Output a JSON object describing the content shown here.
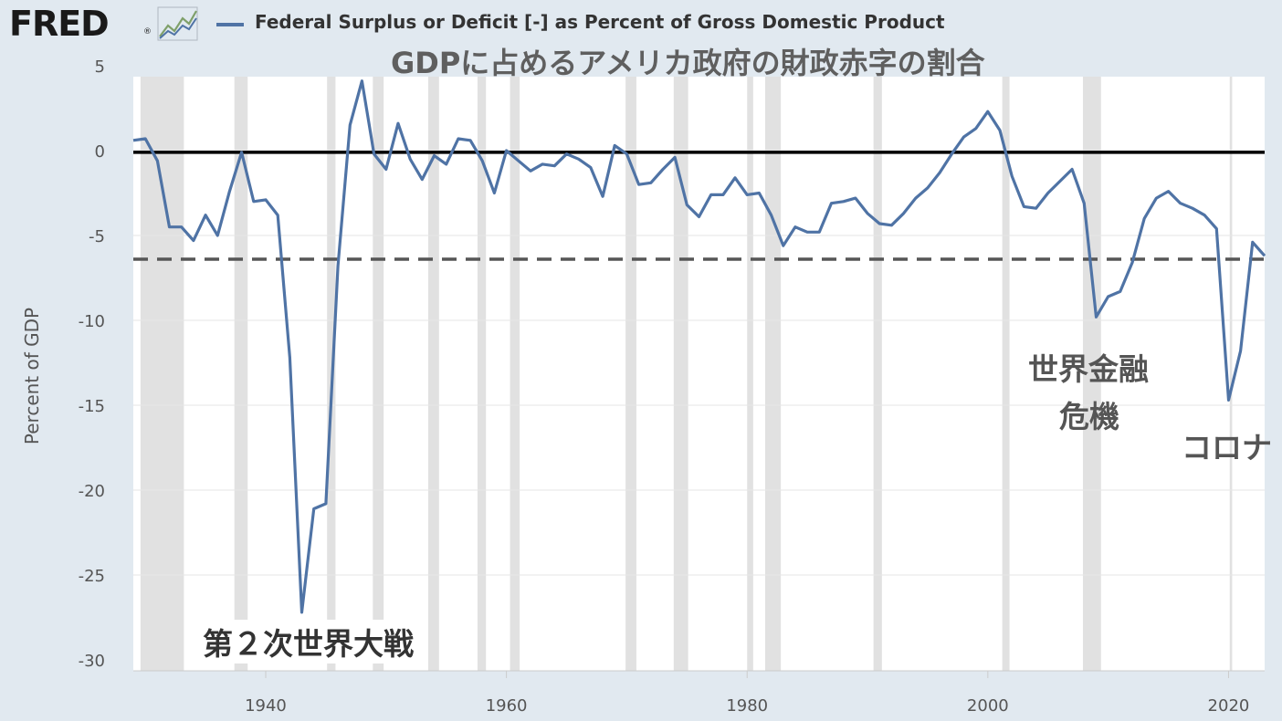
{
  "header": {
    "logo_text": "FRED",
    "logo_reg": "®",
    "legend_label": "Federal Surplus or Deficit [-] as Percent of Gross Domestic Product"
  },
  "overlay_title": "GDPに占めるアメリカ政府の財政赤字の割合",
  "annotations": {
    "ww2": "第２次世界大戦",
    "gfc_line1": "世界金融",
    "gfc_line2": "危機",
    "covid": "コロナ"
  },
  "colors": {
    "background": "#e1e9f0",
    "plot_area": "#ffffff",
    "series": "#4f73a5",
    "recession": "#e1e1e1",
    "zero_line": "#000000",
    "avg_line": "#555555"
  },
  "chart_data": {
    "type": "line",
    "title": "",
    "xlabel": "",
    "ylabel": "Percent of GDP",
    "xlim": [
      1929,
      2023
    ],
    "ylim": [
      -30,
      5
    ],
    "x_ticks": [
      1940,
      1960,
      1980,
      2000,
      2020
    ],
    "y_ticks": [
      5,
      0,
      -5,
      -10,
      -15,
      -20,
      -25,
      -30
    ],
    "grid": "horizontal",
    "legend_placement": "top",
    "series": [
      {
        "name": "Federal Surplus or Deficit [-] as Percent of Gross Domestic Product",
        "x": [
          1929,
          1930,
          1931,
          1932,
          1933,
          1934,
          1935,
          1936,
          1937,
          1938,
          1939,
          1940,
          1941,
          1942,
          1943,
          1944,
          1945,
          1946,
          1947,
          1948,
          1949,
          1950,
          1951,
          1952,
          1953,
          1954,
          1955,
          1956,
          1957,
          1958,
          1959,
          1960,
          1961,
          1962,
          1963,
          1964,
          1965,
          1966,
          1967,
          1968,
          1969,
          1970,
          1971,
          1972,
          1973,
          1974,
          1975,
          1976,
          1977,
          1978,
          1979,
          1980,
          1981,
          1982,
          1983,
          1984,
          1985,
          1986,
          1987,
          1988,
          1989,
          1990,
          1991,
          1992,
          1993,
          1994,
          1995,
          1996,
          1997,
          1998,
          1999,
          2000,
          2001,
          2002,
          2003,
          2004,
          2005,
          2006,
          2007,
          2008,
          2009,
          2010,
          2011,
          2012,
          2013,
          2014,
          2015,
          2016,
          2017,
          2018,
          2019,
          2020,
          2021,
          2022,
          2023
        ],
        "y": [
          0.6,
          0.7,
          -0.6,
          -4.5,
          -4.5,
          -5.3,
          -3.8,
          -5.0,
          -2.4,
          -0.1,
          -3.0,
          -2.9,
          -3.8,
          -12.2,
          -27.2,
          -21.1,
          -20.8,
          -6.8,
          1.5,
          4.1,
          -0.2,
          -1.1,
          1.6,
          -0.5,
          -1.7,
          -0.3,
          -0.8,
          0.7,
          0.6,
          -0.6,
          -2.5,
          0.0,
          -0.6,
          -1.2,
          -0.8,
          -0.9,
          -0.2,
          -0.5,
          -1.0,
          -2.7,
          0.3,
          -0.2,
          -2.0,
          -1.9,
          -1.1,
          -0.4,
          -3.2,
          -3.9,
          -2.6,
          -2.6,
          -1.6,
          -2.6,
          -2.5,
          -3.8,
          -5.6,
          -4.5,
          -4.8,
          -4.8,
          -3.1,
          -3.0,
          -2.8,
          -3.7,
          -4.3,
          -4.4,
          -3.7,
          -2.8,
          -2.2,
          -1.3,
          -0.2,
          0.8,
          1.3,
          2.3,
          1.2,
          -1.5,
          -3.3,
          -3.4,
          -2.5,
          -1.8,
          -1.1,
          -3.1,
          -9.8,
          -8.6,
          -8.3,
          -6.6,
          -4.0,
          -2.8,
          -2.4,
          -3.1,
          -3.4,
          -3.8,
          -4.6,
          -14.7,
          -11.8,
          -5.4,
          -6.2
        ]
      }
    ],
    "reference_lines": [
      {
        "type": "solid",
        "y": -0.1
      },
      {
        "type": "dashed",
        "y": -6.4
      }
    ],
    "recessions": [
      [
        1929.6,
        1933.2
      ],
      [
        1937.4,
        1938.5
      ],
      [
        1945.1,
        1945.8
      ],
      [
        1948.9,
        1949.8
      ],
      [
        1953.5,
        1954.4
      ],
      [
        1957.6,
        1958.3
      ],
      [
        1960.3,
        1961.1
      ],
      [
        1969.9,
        1970.8
      ],
      [
        1973.9,
        1975.1
      ],
      [
        1980.0,
        1980.5
      ],
      [
        1981.5,
        1982.8
      ],
      [
        1990.5,
        1991.2
      ],
      [
        2001.2,
        2001.8
      ],
      [
        2007.9,
        2009.4
      ],
      [
        2020.1,
        2020.3
      ]
    ]
  }
}
